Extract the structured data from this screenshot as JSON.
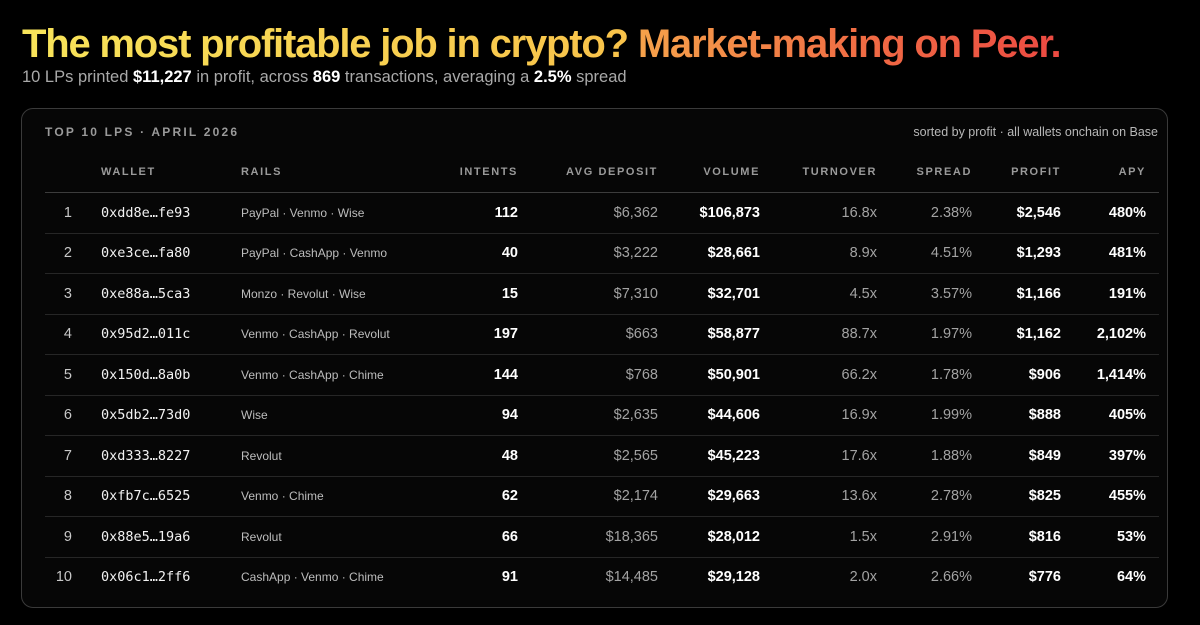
{
  "header": {
    "title_part1": "The most profitable job in crypto?",
    "title_part2": "Market-making on Peer.",
    "sub_text1": "10 LPs printed",
    "sub_profit": "$11,227",
    "sub_text2": "in profit, across",
    "sub_transactions": "869",
    "sub_text3": "transactions, averaging a",
    "sub_spread": "2.5%",
    "sub_text4": "spread"
  },
  "card": {
    "title": "TOP 10 LPS · APRIL 2026",
    "note": "sorted by profit · all wallets onchain on Base"
  },
  "table": {
    "columns": {
      "rank": "",
      "wallet": "WALLET",
      "rails": "RAILS",
      "intents": "INTENTS",
      "avg_deposit": "AVG DEPOSIT",
      "volume": "VOLUME",
      "turnover": "TURNOVER",
      "spread": "SPREAD",
      "profit": "PROFIT",
      "apy": "APY"
    },
    "rows": [
      {
        "rank": "1",
        "wallet": "0xdd8e…fe93",
        "rails": "PayPal · Venmo · Wise",
        "intents": "112",
        "avg_deposit": "$6,362",
        "volume": "$106,873",
        "turnover": "16.8x",
        "spread": "2.38%",
        "profit": "$2,546",
        "apy": "480%"
      },
      {
        "rank": "2",
        "wallet": "0xe3ce…fa80",
        "rails": "PayPal · CashApp · Venmo",
        "intents": "40",
        "avg_deposit": "$3,222",
        "volume": "$28,661",
        "turnover": "8.9x",
        "spread": "4.51%",
        "profit": "$1,293",
        "apy": "481%"
      },
      {
        "rank": "3",
        "wallet": "0xe88a…5ca3",
        "rails": "Monzo · Revolut · Wise",
        "intents": "15",
        "avg_deposit": "$7,310",
        "volume": "$32,701",
        "turnover": "4.5x",
        "spread": "3.57%",
        "profit": "$1,166",
        "apy": "191%"
      },
      {
        "rank": "4",
        "wallet": "0x95d2…011c",
        "rails": "Venmo · CashApp · Revolut",
        "intents": "197",
        "avg_deposit": "$663",
        "volume": "$58,877",
        "turnover": "88.7x",
        "spread": "1.97%",
        "profit": "$1,162",
        "apy": "2,102%"
      },
      {
        "rank": "5",
        "wallet": "0x150d…8a0b",
        "rails": "Venmo · CashApp · Chime",
        "intents": "144",
        "avg_deposit": "$768",
        "volume": "$50,901",
        "turnover": "66.2x",
        "spread": "1.78%",
        "profit": "$906",
        "apy": "1,414%"
      },
      {
        "rank": "6",
        "wallet": "0x5db2…73d0",
        "rails": "Wise",
        "intents": "94",
        "avg_deposit": "$2,635",
        "volume": "$44,606",
        "turnover": "16.9x",
        "spread": "1.99%",
        "profit": "$888",
        "apy": "405%"
      },
      {
        "rank": "7",
        "wallet": "0xd333…8227",
        "rails": "Revolut",
        "intents": "48",
        "avg_deposit": "$2,565",
        "volume": "$45,223",
        "turnover": "17.6x",
        "spread": "1.88%",
        "profit": "$849",
        "apy": "397%"
      },
      {
        "rank": "8",
        "wallet": "0xfb7c…6525",
        "rails": "Venmo · Chime",
        "intents": "62",
        "avg_deposit": "$2,174",
        "volume": "$29,663",
        "turnover": "13.6x",
        "spread": "2.78%",
        "profit": "$825",
        "apy": "455%"
      },
      {
        "rank": "9",
        "wallet": "0x88e5…19a6",
        "rails": "Revolut",
        "intents": "66",
        "avg_deposit": "$18,365",
        "volume": "$28,012",
        "turnover": "1.5x",
        "spread": "2.91%",
        "profit": "$816",
        "apy": "53%"
      },
      {
        "rank": "10",
        "wallet": "0x06c1…2ff6",
        "rails": "CashApp · Venmo · Chime",
        "intents": "91",
        "avg_deposit": "$14,485",
        "volume": "$29,128",
        "turnover": "2.0x",
        "spread": "2.66%",
        "profit": "$776",
        "apy": "64%"
      }
    ]
  },
  "colors": {
    "background": "#000000",
    "title_gradient_start": "#f8e45a",
    "title_gradient_end": "#ec4a42",
    "muted_text": "#a3a3a3",
    "card_border": "#3a3a3a"
  }
}
